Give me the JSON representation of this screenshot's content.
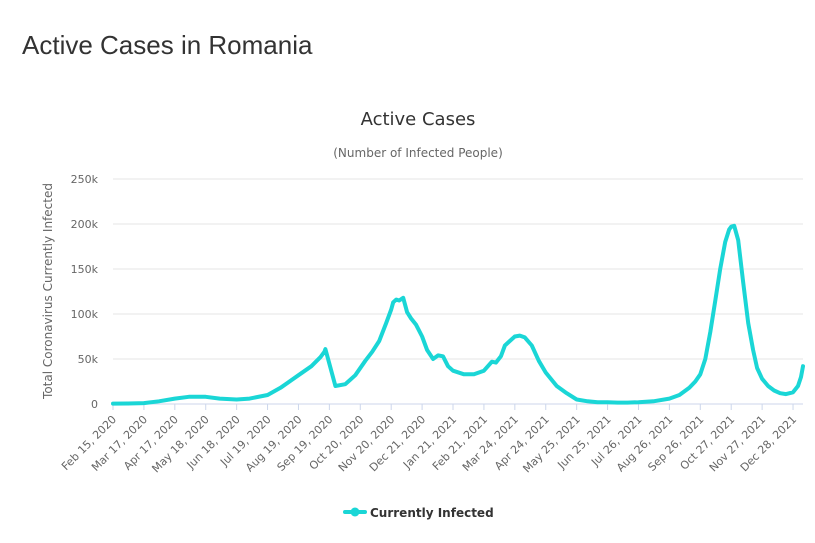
{
  "page": {
    "title": "Active Cases in Romania"
  },
  "chart_data": {
    "type": "line",
    "title": "Active Cases",
    "subtitle": "(Number of Infected People)",
    "ylabel": "Total Coronavirus Currently Infected",
    "xlabel": "",
    "ylim": [
      0,
      250000
    ],
    "y_ticks": [
      0,
      50000,
      100000,
      150000,
      200000,
      250000
    ],
    "y_tick_labels": [
      "0",
      "50k",
      "100k",
      "150k",
      "200k",
      "250k"
    ],
    "x_tick_labels": [
      "Feb 15, 2020",
      "Mar 17, 2020",
      "Apr 17, 2020",
      "May 18, 2020",
      "Jun 18, 2020",
      "Jul 19, 2020",
      "Aug 19, 2020",
      "Sep 19, 2020",
      "Oct 20, 2020",
      "Nov 20, 2020",
      "Dec 21, 2020",
      "Jan 21, 2021",
      "Feb 21, 2021",
      "Mar 24, 2021",
      "Apr 24, 2021",
      "May 25, 2021",
      "Jun 25, 2021",
      "Jul 26, 2021",
      "Aug 26, 2021",
      "Sep 26, 2021",
      "Oct 27, 2021",
      "Nov 27, 2021",
      "Dec 28, 2021"
    ],
    "grid": true,
    "legend_position": "bottom",
    "series": [
      {
        "name": "Currently Infected",
        "color": "#1ad6d6",
        "x": [
          "2020-02-15",
          "2020-03-01",
          "2020-03-17",
          "2020-04-01",
          "2020-04-17",
          "2020-05-01",
          "2020-05-18",
          "2020-06-01",
          "2020-06-18",
          "2020-07-01",
          "2020-07-19",
          "2020-08-01",
          "2020-08-19",
          "2020-09-01",
          "2020-09-10",
          "2020-09-14",
          "2020-09-15",
          "2020-09-25",
          "2020-10-05",
          "2020-10-15",
          "2020-10-25",
          "2020-11-01",
          "2020-11-08",
          "2020-11-15",
          "2020-11-20",
          "2020-11-22",
          "2020-11-25",
          "2020-11-28",
          "2020-12-02",
          "2020-12-06",
          "2020-12-10",
          "2020-12-15",
          "2020-12-21",
          "2020-12-26",
          "2021-01-01",
          "2021-01-06",
          "2021-01-11",
          "2021-01-16",
          "2021-01-21",
          "2021-02-01",
          "2021-02-11",
          "2021-02-21",
          "2021-03-01",
          "2021-03-05",
          "2021-03-10",
          "2021-03-14",
          "2021-03-19",
          "2021-03-24",
          "2021-03-29",
          "2021-04-03",
          "2021-04-10",
          "2021-04-17",
          "2021-04-24",
          "2021-05-05",
          "2021-05-15",
          "2021-05-25",
          "2021-06-05",
          "2021-06-15",
          "2021-06-25",
          "2021-07-05",
          "2021-07-15",
          "2021-07-26",
          "2021-08-10",
          "2021-08-26",
          "2021-09-05",
          "2021-09-15",
          "2021-09-21",
          "2021-09-26",
          "2021-10-01",
          "2021-10-06",
          "2021-10-11",
          "2021-10-16",
          "2021-10-21",
          "2021-10-25",
          "2021-10-27",
          "2021-10-30",
          "2021-11-03",
          "2021-11-08",
          "2021-11-13",
          "2021-11-18",
          "2021-11-22",
          "2021-11-27",
          "2021-12-03",
          "2021-12-09",
          "2021-12-15",
          "2021-12-21",
          "2021-12-28",
          "2022-01-02",
          "2022-01-05",
          "2022-01-07"
        ],
        "values": [
          500,
          600,
          1000,
          3000,
          6000,
          8000,
          8000,
          6000,
          5000,
          6000,
          10000,
          18000,
          32000,
          42000,
          52000,
          58000,
          61000,
          20000,
          22000,
          32000,
          48000,
          58000,
          70000,
          90000,
          105000,
          113000,
          116000,
          115000,
          118000,
          102000,
          95000,
          88000,
          75000,
          60000,
          50000,
          54000,
          53000,
          42000,
          37000,
          33000,
          33000,
          37000,
          47000,
          46000,
          53000,
          65000,
          70000,
          75000,
          76000,
          74000,
          65000,
          48000,
          35000,
          20000,
          12000,
          5000,
          3000,
          2000,
          2000,
          1500,
          1500,
          2000,
          3000,
          6000,
          10000,
          18000,
          25000,
          33000,
          50000,
          80000,
          115000,
          150000,
          180000,
          194000,
          197000,
          198000,
          182000,
          135000,
          90000,
          60000,
          40000,
          28000,
          20000,
          15000,
          12000,
          11000,
          13000,
          20000,
          30000,
          42000
        ]
      }
    ]
  }
}
